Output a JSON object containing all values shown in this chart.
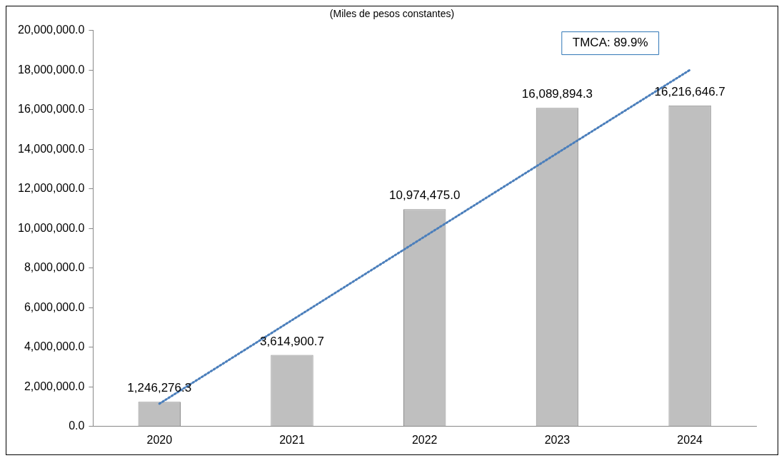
{
  "chart_data": {
    "type": "bar",
    "subtitle": "(Miles de pesos constantes)",
    "categories": [
      "2020",
      "2021",
      "2022",
      "2023",
      "2024"
    ],
    "series": [
      {
        "color": "#bfbfbf",
        "values": [
          1246276.3,
          3614900.7,
          10974475.0,
          16089894.3,
          16216646.7
        ],
        "value_labels": [
          "1,246,276.3",
          "3,614,900.7",
          "10,974,475.0",
          "16,089,894.3",
          "16,216,646.7"
        ]
      },
      {
        "type": "line",
        "color": "#4a7ebb",
        "line_style": "dotted",
        "marker": "none",
        "values": [
          1150000,
          5370000,
          9590000,
          13800000,
          18000000
        ]
      }
    ],
    "ylim": [
      0,
      20000000
    ],
    "yticks": [
      {
        "value": 0,
        "label": "0.0"
      },
      {
        "value": 2000000,
        "label": "2,000,000.0"
      },
      {
        "value": 4000000,
        "label": "4,000,000.0"
      },
      {
        "value": 6000000,
        "label": "6,000,000.0"
      },
      {
        "value": 8000000,
        "label": "8,000,000.0"
      },
      {
        "value": 10000000,
        "label": "10,000,000.0"
      },
      {
        "value": 12000000,
        "label": "12,000,000.0"
      },
      {
        "value": 14000000,
        "label": "14,000,000.0"
      },
      {
        "value": 16000000,
        "label": "16,000,000.0"
      },
      {
        "value": 18000000,
        "label": "18,000,000.0"
      },
      {
        "value": 20000000,
        "label": "20,000,000.0"
      }
    ],
    "grid": false,
    "legend": false,
    "annotations": [
      "TMCA: 89.9%"
    ]
  }
}
